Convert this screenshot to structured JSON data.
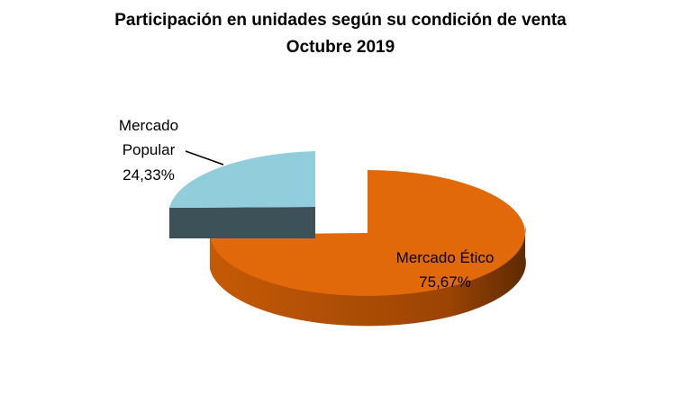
{
  "chart_data": {
    "type": "pie",
    "title": "Participación en unidades según su condición de venta",
    "subtitle": "Octubre 2019",
    "slices": [
      {
        "name": "Mercado Ético",
        "value": 75.67,
        "label": "75,67%",
        "color": "#e2690a",
        "side_color": "#b24f05"
      },
      {
        "name": "Mercado Popular",
        "value": 24.33,
        "label": "24,33%",
        "color": "#92cddc",
        "side_color": "#3c5258"
      }
    ],
    "exploded": "Mercado Popular",
    "style": "3d"
  }
}
